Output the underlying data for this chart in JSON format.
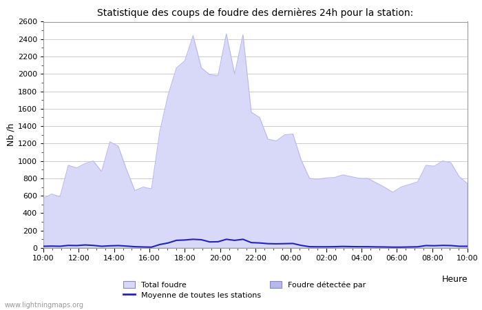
{
  "title": "Statistique des coups de foudre des dernières 24h pour la station:",
  "xlabel": "Heure",
  "ylabel": "Nb /h",
  "ylim": [
    0,
    2600
  ],
  "yticks": [
    0,
    200,
    400,
    600,
    800,
    1000,
    1200,
    1400,
    1600,
    1800,
    2000,
    2200,
    2400,
    2600
  ],
  "xtick_labels": [
    "10:00",
    "12:00",
    "14:00",
    "16:00",
    "18:00",
    "20:00",
    "22:00",
    "00:00",
    "02:00",
    "04:00",
    "06:00",
    "08:00",
    "10:00"
  ],
  "watermark": "www.lightningmaps.org",
  "fill_color_total": "#d8d8f8",
  "fill_color_detected": "#b8b8f0",
  "line_color": "#2222bb",
  "background_color": "#ffffff",
  "grid_color": "#cccccc",
  "total_foudre": [
    570,
    620,
    590,
    950,
    920,
    970,
    1000,
    880,
    1220,
    1170,
    900,
    660,
    700,
    680,
    1340,
    1760,
    2070,
    2150,
    2440,
    2070,
    1990,
    1980,
    2460,
    2000,
    2450,
    1560,
    1500,
    1250,
    1230,
    1300,
    1310,
    1010,
    800,
    790,
    805,
    810,
    840,
    820,
    800,
    800,
    750,
    700,
    640,
    700,
    730,
    760,
    950,
    940,
    1000,
    980,
    820,
    740
  ],
  "moyenne": [
    20,
    22,
    20,
    30,
    28,
    35,
    30,
    20,
    25,
    28,
    22,
    15,
    12,
    10,
    40,
    58,
    88,
    92,
    100,
    95,
    70,
    72,
    100,
    88,
    100,
    62,
    58,
    50,
    48,
    50,
    52,
    30,
    15,
    14,
    14,
    15,
    18,
    16,
    15,
    15,
    13,
    12,
    10,
    10,
    12,
    14,
    28,
    26,
    30,
    28,
    20,
    20
  ],
  "legend_total_label": "Total foudre",
  "legend_detected_label": "Foudre détectée par",
  "legend_moyenne_label": "Moyenne de toutes les stations"
}
